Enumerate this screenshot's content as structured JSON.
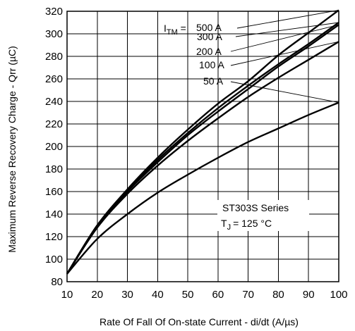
{
  "chart_data": {
    "type": "line",
    "xlabel": "Rate Of Fall Of On-state Current - di/dt (A/µs)",
    "ylabel": "Maximum Reverse Recovery Charge - Qrr (µC)",
    "xlim": [
      10,
      100
    ],
    "ylim": [
      80,
      320
    ],
    "xticks": [
      "10",
      "20",
      "30",
      "40",
      "50",
      "60",
      "70",
      "80",
      "90",
      "100"
    ],
    "yticks": [
      "80",
      "100",
      "120",
      "140",
      "160",
      "180",
      "200",
      "220",
      "240",
      "260",
      "280",
      "300",
      "320"
    ],
    "grid": true,
    "x": [
      10,
      20,
      30,
      40,
      50,
      60,
      70,
      80,
      90,
      100
    ],
    "series": [
      {
        "name": "500 A",
        "values": [
          87,
          130,
          162,
          190,
          215,
          238,
          258,
          281,
          301,
          321
        ]
      },
      {
        "name": "300 A",
        "values": [
          87,
          130,
          161,
          188,
          212,
          234,
          254,
          273,
          291,
          310
        ]
      },
      {
        "name": "200 A",
        "values": [
          87,
          129,
          160,
          186,
          210,
          231,
          251,
          271,
          289,
          308
        ]
      },
      {
        "name": "100 A",
        "values": [
          87,
          128,
          158,
          183,
          205,
          225,
          244,
          261,
          277,
          293
        ]
      },
      {
        "name": "50 A",
        "values": [
          87,
          118,
          140,
          159,
          175,
          190,
          204,
          216,
          228,
          239
        ]
      }
    ],
    "legend": {
      "prefix_main": "I",
      "prefix_sub": "TM",
      "prefix_eq": " = ",
      "labels": [
        "500 A",
        "300 A",
        "200 A",
        "100 A",
        "50 A"
      ]
    },
    "info": {
      "series_name": "ST303S Series",
      "tj_main": "T",
      "tj_sub": "J",
      "tj_rest": "= 125 °C"
    }
  }
}
